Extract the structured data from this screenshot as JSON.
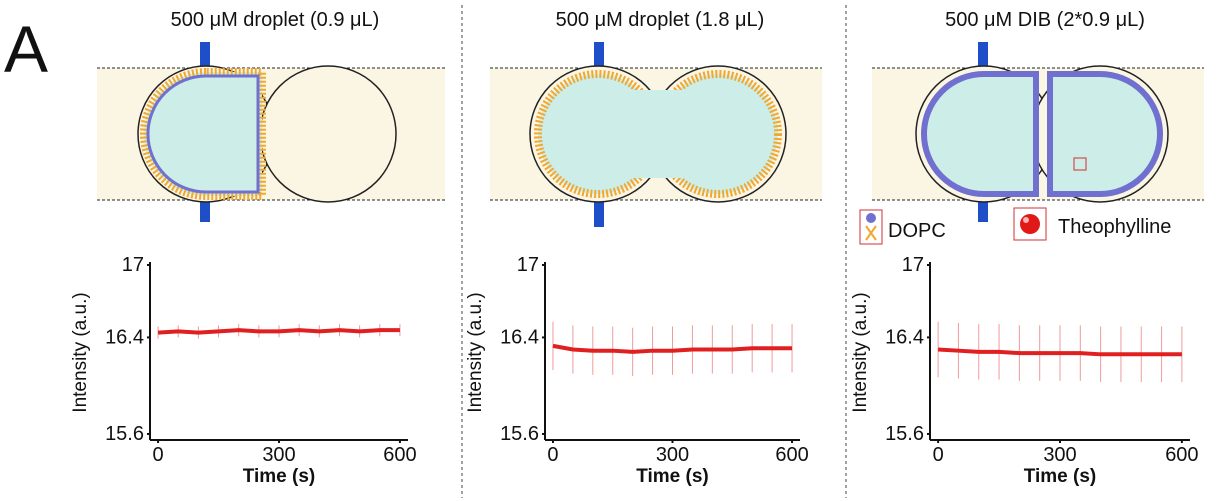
{
  "panel_label": "A",
  "legend": [
    "DOPC",
    "Theophylline"
  ],
  "chart_data": [
    {
      "type": "line",
      "title": "500 μM droplet (0.9 μL)",
      "x_label": "Time (s)",
      "y_label": "Intensity (a.u.)",
      "x": [
        0,
        50,
        100,
        150,
        200,
        250,
        300,
        350,
        400,
        450,
        500,
        550,
        600
      ],
      "series": [
        {
          "color": "#e02020",
          "values": [
            16.44,
            16.45,
            16.44,
            16.45,
            16.46,
            16.45,
            16.45,
            16.46,
            16.45,
            16.46,
            16.45,
            16.46,
            16.46
          ],
          "errors": [
            0.05,
            0.05,
            0.05,
            0.05,
            0.05,
            0.05,
            0.05,
            0.05,
            0.05,
            0.05,
            0.05,
            0.05,
            0.05
          ]
        }
      ],
      "xlim": [
        -20,
        620
      ],
      "xticks": [
        0,
        300,
        600
      ],
      "ylim": [
        15.55,
        17.0
      ],
      "yticks": [
        15.6,
        16.4,
        17.0
      ]
    },
    {
      "type": "line",
      "title": "500 μM droplet (1.8 μL)",
      "x_label": "Time (s)",
      "y_label": "Intensity (a.u.)",
      "x": [
        0,
        50,
        100,
        150,
        200,
        250,
        300,
        350,
        400,
        450,
        500,
        550,
        600
      ],
      "series": [
        {
          "color": "#e02020",
          "values": [
            16.33,
            16.3,
            16.29,
            16.29,
            16.28,
            16.29,
            16.29,
            16.3,
            16.3,
            16.3,
            16.31,
            16.31,
            16.31
          ],
          "errors": [
            0.2,
            0.2,
            0.2,
            0.2,
            0.2,
            0.2,
            0.2,
            0.2,
            0.2,
            0.2,
            0.2,
            0.2,
            0.2
          ]
        }
      ],
      "xlim": [
        -20,
        620
      ],
      "xticks": [
        0,
        300,
        600
      ],
      "ylim": [
        15.55,
        17.0
      ],
      "yticks": [
        15.6,
        16.4,
        17.0
      ]
    },
    {
      "type": "line",
      "title": "500 μM DIB (2*0.9 μL)",
      "x_label": "Time (s)",
      "y_label": "Intensity (a.u.)",
      "x": [
        0,
        50,
        100,
        150,
        200,
        250,
        300,
        350,
        400,
        450,
        500,
        550,
        600
      ],
      "series": [
        {
          "color": "#e02020",
          "values": [
            16.3,
            16.29,
            16.28,
            16.28,
            16.27,
            16.27,
            16.27,
            16.27,
            16.26,
            16.26,
            16.26,
            16.26,
            16.26
          ],
          "errors": [
            0.23,
            0.23,
            0.23,
            0.23,
            0.23,
            0.23,
            0.23,
            0.23,
            0.23,
            0.23,
            0.23,
            0.23,
            0.23
          ]
        }
      ],
      "xlim": [
        -20,
        620
      ],
      "xticks": [
        0,
        300,
        600
      ],
      "ylim": [
        15.55,
        17.0
      ],
      "yticks": [
        15.6,
        16.4,
        17.0
      ]
    }
  ]
}
